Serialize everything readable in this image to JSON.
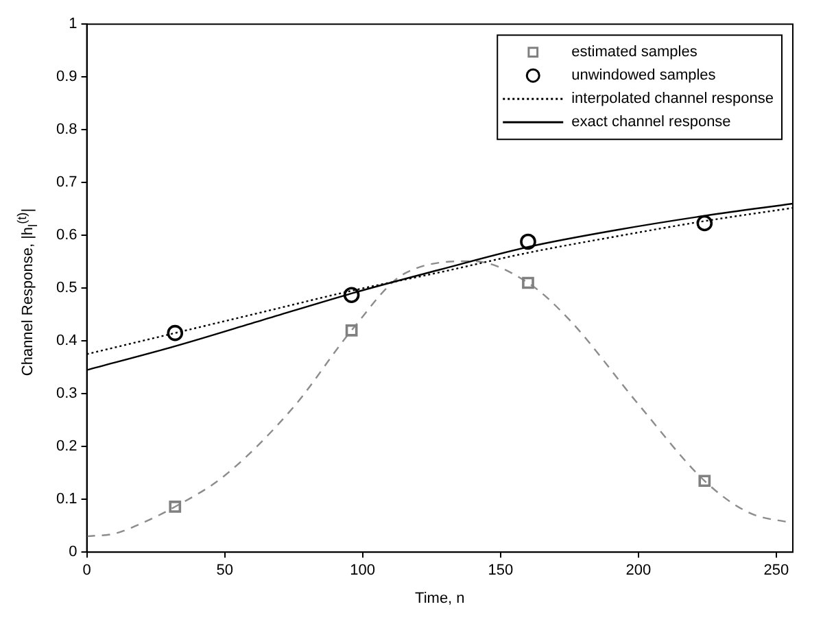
{
  "chart_data": {
    "type": "line",
    "xlabel": "Time, n",
    "ylabel": "Channel Response, |h$_{l}$$^{(t)}$|",
    "xlim": [
      0,
      256
    ],
    "xticks": [
      0,
      50,
      100,
      150,
      200,
      250
    ],
    "ylim": [
      0,
      1
    ],
    "yticks": [
      0,
      0.1,
      0.2,
      0.3,
      0.4,
      0.5,
      0.6,
      0.7,
      0.8,
      0.9,
      1
    ],
    "legend": "top right",
    "series": [
      {
        "type": "scatter",
        "name": "estimated samples",
        "color": "#808080",
        "marker": "square",
        "x": [
          32,
          96,
          160,
          224
        ],
        "values": [
          0.086,
          0.42,
          0.51,
          0.135
        ]
      },
      {
        "type": "scatter",
        "name": "unwindowed samples",
        "color": "#000000",
        "marker": "circle",
        "x": [
          32,
          96,
          160,
          224
        ],
        "values": [
          0.415,
          0.487,
          0.588,
          0.623
        ]
      },
      {
        "name": "interpolated channel response",
        "color": "#000000",
        "marker": "none",
        "line_style": "dotted",
        "x": [
          0,
          32,
          64,
          96,
          128,
          160,
          192,
          224,
          256
        ],
        "values": [
          0.375,
          0.415,
          0.455,
          0.495,
          0.53,
          0.567,
          0.598,
          0.627,
          0.652
        ]
      },
      {
        "name": "exact channel response",
        "color": "#000000",
        "marker": "none",
        "line_style": "solid",
        "x": [
          0,
          32,
          64,
          96,
          128,
          160,
          192,
          224,
          256
        ],
        "values": [
          0.345,
          0.39,
          0.44,
          0.49,
          0.535,
          0.578,
          0.61,
          0.637,
          0.66
        ]
      },
      {
        "color": "#8c8c8c",
        "marker": "none",
        "line_style": "dashed",
        "x": [
          0,
          10,
          20,
          32,
          50,
          75,
          96,
          115,
          140,
          160,
          175,
          200,
          224,
          240,
          256
        ],
        "values": [
          0.03,
          0.035,
          0.055,
          0.086,
          0.145,
          0.275,
          0.42,
          0.527,
          0.551,
          0.51,
          0.44,
          0.28,
          0.135,
          0.075,
          0.055
        ]
      }
    ]
  }
}
